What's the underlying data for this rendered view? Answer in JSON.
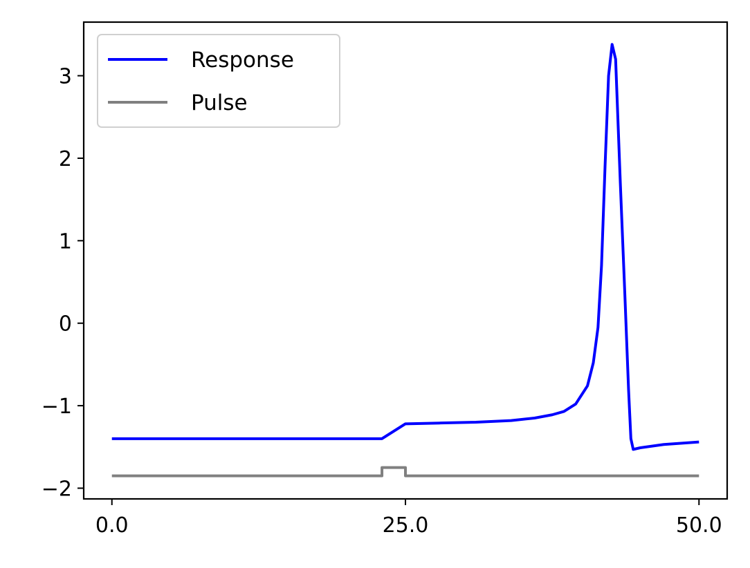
{
  "chart_data": {
    "type": "line",
    "title": "",
    "xlabel": "",
    "ylabel": "",
    "xlim": [
      -2.4,
      52.4
    ],
    "ylim": [
      -2.13,
      3.65
    ],
    "x_ticks": [
      0,
      25,
      50
    ],
    "x_tick_labels": [
      "0.0",
      "25.0",
      "50.0"
    ],
    "y_ticks": [
      -2,
      -1,
      0,
      1,
      2,
      3
    ],
    "y_tick_labels": [
      "−2",
      "−1",
      "0",
      "1",
      "2",
      "3"
    ],
    "grid": false,
    "legend_position": "top-left",
    "series": [
      {
        "name": "Response",
        "color": "#0000ff",
        "x": [
          0,
          10,
          20,
          23,
          25,
          28,
          31,
          34,
          36,
          37.5,
          38.5,
          39.5,
          40.5,
          41,
          41.4,
          41.7,
          42,
          42.3,
          42.6,
          42.9,
          43.3,
          43.7,
          44,
          44.2,
          44.4,
          45,
          47,
          50
        ],
        "y": [
          -1.4,
          -1.4,
          -1.4,
          -1.4,
          -1.22,
          -1.21,
          -1.2,
          -1.18,
          -1.15,
          -1.11,
          -1.07,
          -0.98,
          -0.76,
          -0.48,
          -0.05,
          0.7,
          1.9,
          3.0,
          3.38,
          3.2,
          1.7,
          0.3,
          -0.8,
          -1.4,
          -1.53,
          -1.51,
          -1.47,
          -1.44
        ]
      },
      {
        "name": "Pulse",
        "color": "#808080",
        "x": [
          0,
          23,
          23,
          25,
          25,
          50
        ],
        "y": [
          -1.85,
          -1.85,
          -1.75,
          -1.75,
          -1.85,
          -1.85
        ]
      }
    ]
  }
}
